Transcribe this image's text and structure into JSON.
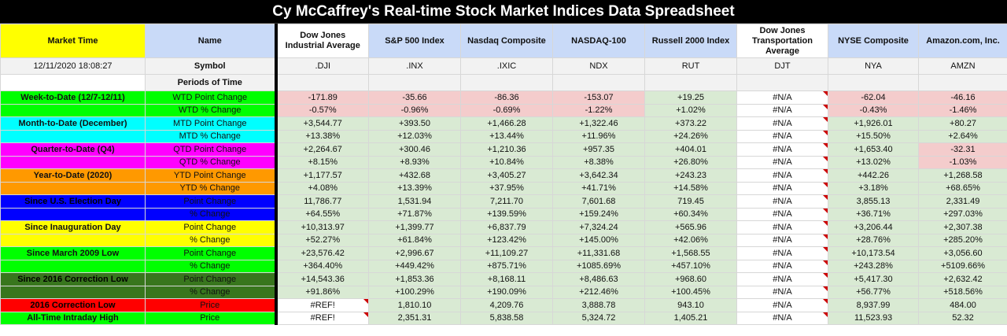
{
  "title": "Cy McCaffrey's Real-time Stock Market Indices Data Spreadsheet",
  "header": {
    "market_time_label": "Market Time",
    "name_label": "Name",
    "timestamp": "12/11/2020 18:08:27",
    "symbol_label": "Symbol",
    "periods_label": "Periods of Time"
  },
  "indices": [
    {
      "name": "Dow Jones Industrial Average",
      "symbol": ".DJI"
    },
    {
      "name": "S&P 500 Index",
      "symbol": ".INX"
    },
    {
      "name": "Nasdaq Composite",
      "symbol": ".IXIC"
    },
    {
      "name": "NASDAQ-100",
      "symbol": "NDX"
    },
    {
      "name": "Russell 2000 Index",
      "symbol": "RUT"
    },
    {
      "name": "Dow Jones Transportation Average",
      "symbol": "DJT"
    },
    {
      "name": "NYSE Composite",
      "symbol": "NYA"
    },
    {
      "name": "Amazon.com, Inc.",
      "symbol": "AMZN"
    }
  ],
  "colors": {
    "wtd": "#00ff00",
    "mtd": "#00ffff",
    "qtd": "#ff00ff",
    "ytd": "#ff9900",
    "election": "#0000ff",
    "inauguration": "#ffff00",
    "march2009": "#00ff00",
    "correction2016": "#38761d",
    "correction_low": "#ff0000",
    "ath": "#00ff00",
    "positive_cell": "#d9ead3",
    "negative_cell": "#f4cccc"
  },
  "rows": [
    {
      "period": "Week-to-Date (12/7-12/11)",
      "metric": "WTD Point Change",
      "band": "wtd",
      "values": [
        "-171.89",
        "-35.66",
        "-86.36",
        "-153.07",
        "+19.25",
        "#N/A",
        "-62.04",
        "-46.16"
      ],
      "cells": [
        "r",
        "r",
        "r",
        "r",
        "g",
        "n",
        "r",
        "r"
      ]
    },
    {
      "period": "",
      "metric": "WTD % Change",
      "band": "wtd",
      "values": [
        "-0.57%",
        "-0.96%",
        "-0.69%",
        "-1.22%",
        "+1.02%",
        "#N/A",
        "-0.43%",
        "-1.46%"
      ],
      "cells": [
        "r",
        "r",
        "r",
        "r",
        "g",
        "n",
        "r",
        "r"
      ]
    },
    {
      "period": "Month-to-Date (December)",
      "metric": "MTD Point Change",
      "band": "mtd",
      "values": [
        "+3,544.77",
        "+393.50",
        "+1,466.28",
        "+1,322.46",
        "+373.22",
        "#N/A",
        "+1,926.01",
        "+80.27"
      ],
      "cells": [
        "g",
        "g",
        "g",
        "g",
        "g",
        "n",
        "g",
        "g"
      ]
    },
    {
      "period": "",
      "metric": "MTD % Change",
      "band": "mtd",
      "values": [
        "+13.38%",
        "+12.03%",
        "+13.44%",
        "+11.96%",
        "+24.26%",
        "#N/A",
        "+15.50%",
        "+2.64%"
      ],
      "cells": [
        "g",
        "g",
        "g",
        "g",
        "g",
        "n",
        "g",
        "g"
      ]
    },
    {
      "period": "Quarter-to-Date (Q4)",
      "metric": "QTD Point Change",
      "band": "qtd",
      "values": [
        "+2,264.67",
        "+300.46",
        "+1,210.36",
        "+957.35",
        "+404.01",
        "#N/A",
        "+1,653.40",
        "-32.31"
      ],
      "cells": [
        "g",
        "g",
        "g",
        "g",
        "g",
        "n",
        "g",
        "r"
      ]
    },
    {
      "period": "",
      "metric": "QTD % Change",
      "band": "qtd",
      "values": [
        "+8.15%",
        "+8.93%",
        "+10.84%",
        "+8.38%",
        "+26.80%",
        "#N/A",
        "+13.02%",
        "-1.03%"
      ],
      "cells": [
        "g",
        "g",
        "g",
        "g",
        "g",
        "n",
        "g",
        "r"
      ]
    },
    {
      "period": "Year-to-Date (2020)",
      "metric": "YTD Point Change",
      "band": "ytd",
      "values": [
        "+1,177.57",
        "+432.68",
        "+3,405.27",
        "+3,642.34",
        "+243.23",
        "#N/A",
        "+442.26",
        "+1,268.58"
      ],
      "cells": [
        "g",
        "g",
        "g",
        "g",
        "g",
        "n",
        "g",
        "g"
      ]
    },
    {
      "period": "",
      "metric": "YTD % Change",
      "band": "ytd",
      "values": [
        "+4.08%",
        "+13.39%",
        "+37.95%",
        "+41.71%",
        "+14.58%",
        "#N/A",
        "+3.18%",
        "+68.65%"
      ],
      "cells": [
        "g",
        "g",
        "g",
        "g",
        "g",
        "n",
        "g",
        "g"
      ]
    },
    {
      "period": "Since U.S. Election Day",
      "metric": "Point Change",
      "band": "election",
      "values": [
        "11,786.77",
        "1,531.94",
        "7,211.70",
        "7,601.68",
        "719.45",
        "#N/A",
        "3,855.13",
        "2,331.49"
      ],
      "cells": [
        "g",
        "g",
        "g",
        "g",
        "g",
        "n",
        "g",
        "g"
      ]
    },
    {
      "period": "",
      "metric": "% Change",
      "band": "election",
      "values": [
        "+64.55%",
        "+71.87%",
        "+139.59%",
        "+159.24%",
        "+60.34%",
        "#N/A",
        "+36.71%",
        "+297.03%"
      ],
      "cells": [
        "g",
        "g",
        "g",
        "g",
        "g",
        "n",
        "g",
        "g"
      ]
    },
    {
      "period": "Since Inauguration Day",
      "metric": "Point Change",
      "band": "inauguration",
      "values": [
        "+10,313.97",
        "+1,399.77",
        "+6,837.79",
        "+7,324.24",
        "+565.96",
        "#N/A",
        "+3,206.44",
        "+2,307.38"
      ],
      "cells": [
        "g",
        "g",
        "g",
        "g",
        "g",
        "n",
        "g",
        "g"
      ]
    },
    {
      "period": "",
      "metric": "% Change",
      "band": "inauguration",
      "values": [
        "+52.27%",
        "+61.84%",
        "+123.42%",
        "+145.00%",
        "+42.06%",
        "#N/A",
        "+28.76%",
        "+285.20%"
      ],
      "cells": [
        "g",
        "g",
        "g",
        "g",
        "g",
        "n",
        "g",
        "g"
      ]
    },
    {
      "period": "Since March 2009 Low",
      "metric": "Point Change",
      "band": "march2009",
      "values": [
        "+23,576.42",
        "+2,996.67",
        "+11,109.27",
        "+11,331.68",
        "+1,568.55",
        "#N/A",
        "+10,173.54",
        "+3,056.60"
      ],
      "cells": [
        "g",
        "g",
        "g",
        "g",
        "g",
        "n",
        "g",
        "g"
      ]
    },
    {
      "period": "",
      "metric": "% Change",
      "band": "march2009",
      "values": [
        "+364.40%",
        "+449.42%",
        "+875.71%",
        "+1085.69%",
        "+457.10%",
        "#N/A",
        "+243.28%",
        "+5109.66%"
      ],
      "cells": [
        "g",
        "g",
        "g",
        "g",
        "g",
        "n",
        "g",
        "g"
      ]
    },
    {
      "period": "Since 2016 Correction Low",
      "metric": "Point Change",
      "band": "correction2016",
      "values": [
        "+14,543.36",
        "+1,853.36",
        "+8,168.11",
        "+8,486.63",
        "+968.60",
        "#N/A",
        "+5,417.30",
        "+2,632.42"
      ],
      "cells": [
        "g",
        "g",
        "g",
        "g",
        "g",
        "n",
        "g",
        "g"
      ]
    },
    {
      "period": "",
      "metric": "% Change",
      "band": "correction2016",
      "values": [
        "+91.86%",
        "+100.29%",
        "+190.09%",
        "+212.46%",
        "+100.45%",
        "#N/A",
        "+56.77%",
        "+518.56%"
      ],
      "cells": [
        "g",
        "g",
        "g",
        "g",
        "g",
        "n",
        "g",
        "g"
      ]
    },
    {
      "period": "2016 Correction Low",
      "metric": "Price",
      "band": "correction_low",
      "values": [
        "#REF!",
        "1,810.10",
        "4,209.76",
        "3,888.78",
        "943.10",
        "#N/A",
        "8,937.99",
        "484.00"
      ],
      "cells": [
        "n",
        "g",
        "g",
        "g",
        "g",
        "n",
        "g",
        "g"
      ]
    },
    {
      "period": "All-Time Intraday High",
      "metric": "Price",
      "band": "ath",
      "values": [
        "#REF!",
        "2,351.31",
        "5,838.58",
        "5,324.72",
        "1,405.21",
        "#N/A",
        "11,523.93",
        "52.32"
      ],
      "cells": [
        "n",
        "g",
        "g",
        "g",
        "g",
        "n",
        "g",
        "g"
      ]
    }
  ]
}
